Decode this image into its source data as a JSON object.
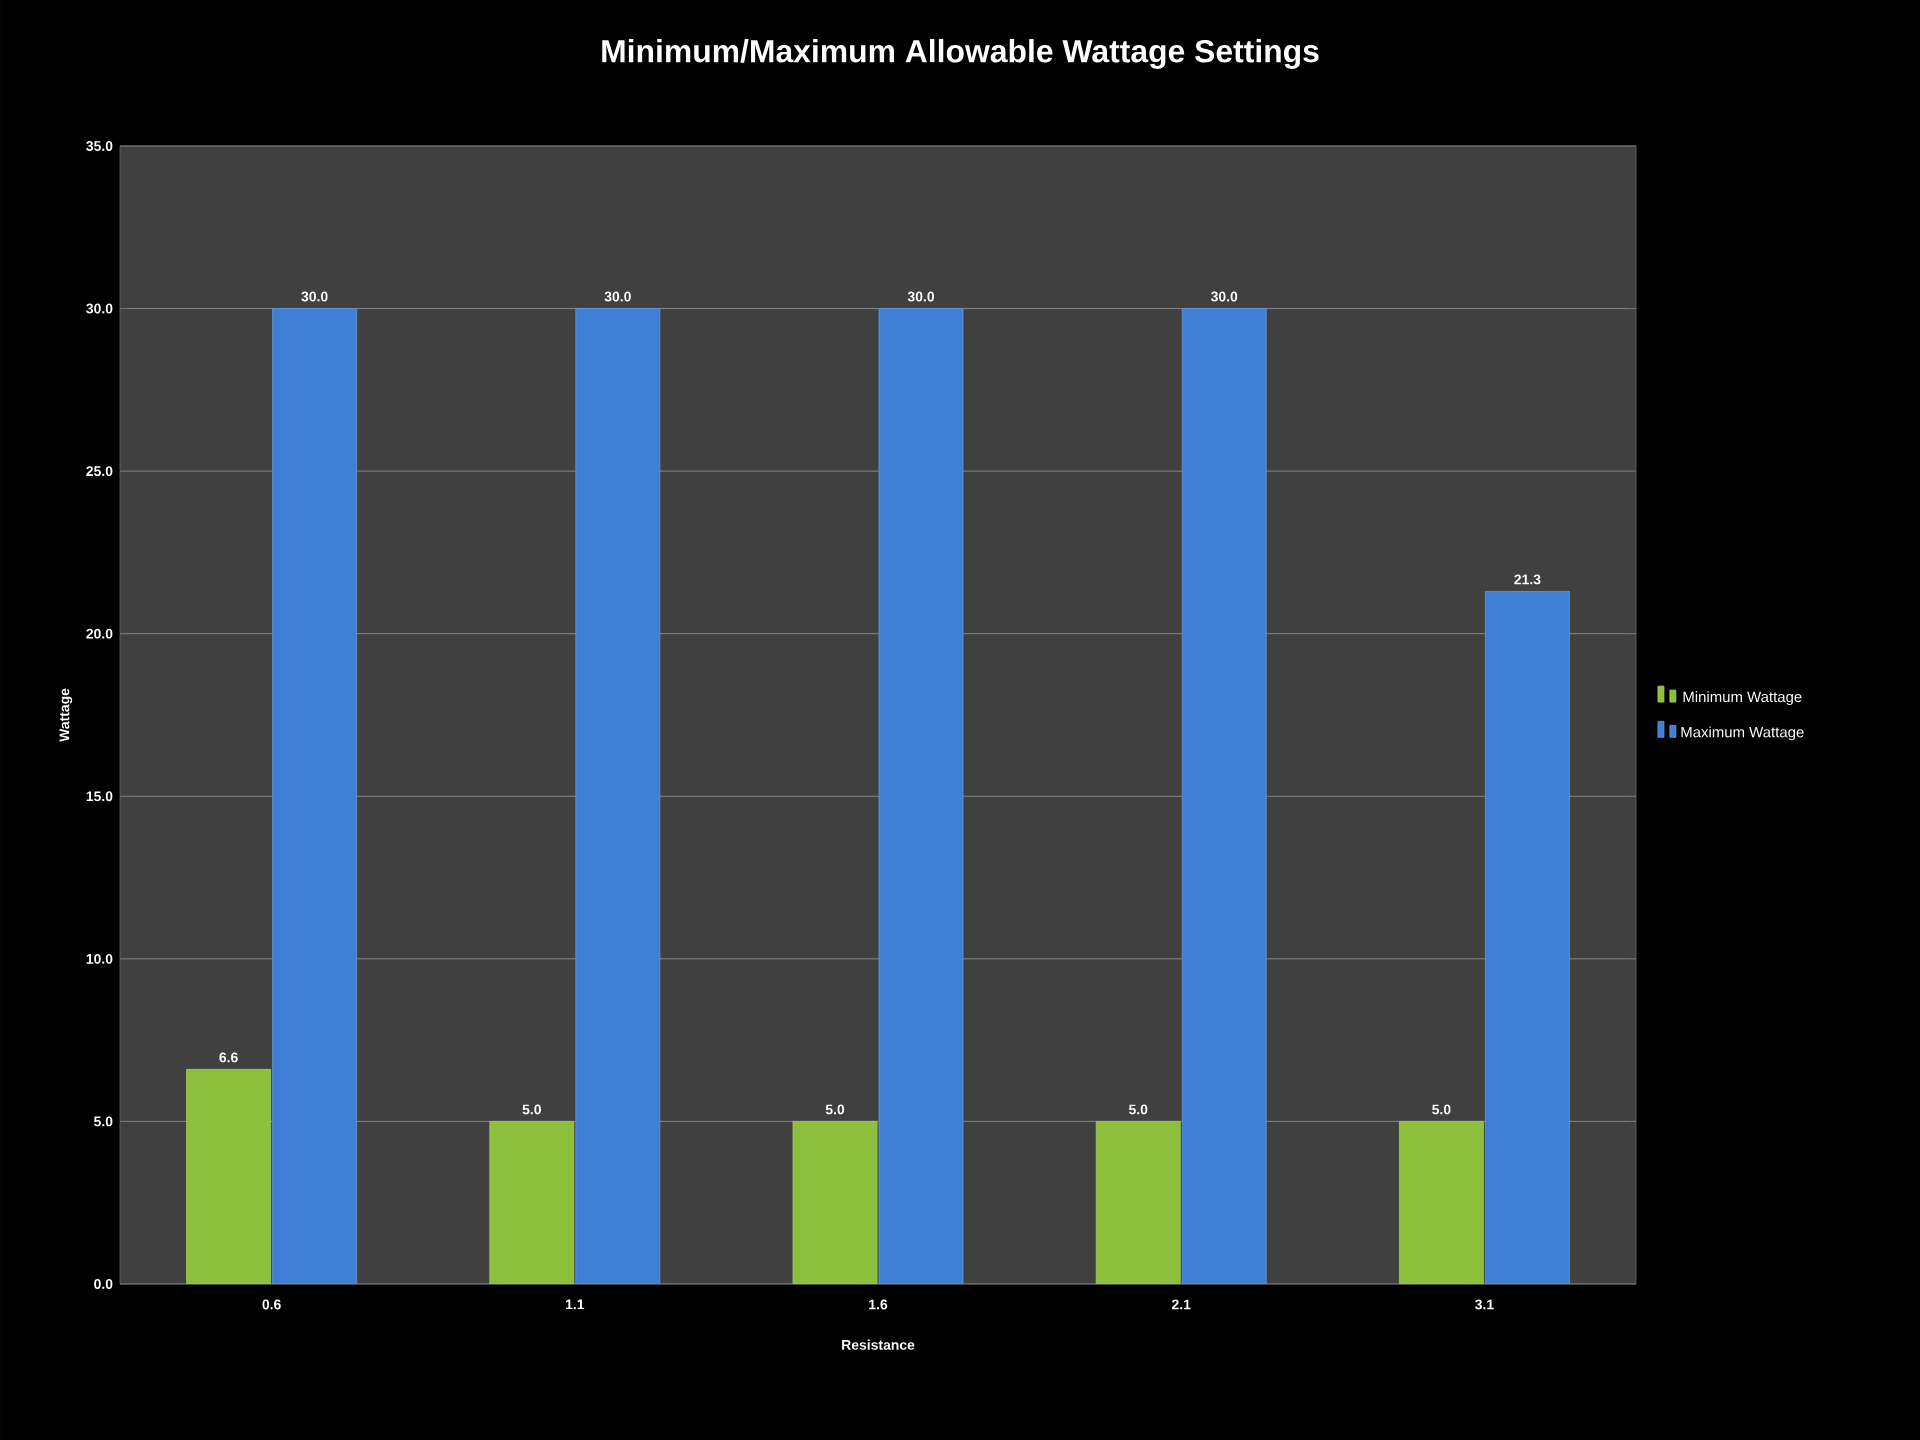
{
  "chart_data": {
    "type": "bar",
    "title": "Minimum/Maximum Allowable Wattage Settings",
    "xlabel": "Resistance",
    "ylabel": "Wattage",
    "categories": [
      "0.6",
      "1.1",
      "1.6",
      "2.1",
      "3.1"
    ],
    "series": [
      {
        "name": "Minimum Wattage",
        "color": "#8cbf3c",
        "values": [
          6.6,
          5.0,
          5.0,
          5.0,
          5.0
        ],
        "value_labels": [
          "6.6",
          "5.0",
          "5.0",
          "5.0",
          "5.0"
        ]
      },
      {
        "name": "Maximum Wattage",
        "color": "#3f80d6",
        "values": [
          30.0,
          30.0,
          30.0,
          30.0,
          21.3
        ],
        "value_labels": [
          "30.0",
          "30.0",
          "30.0",
          "30.0",
          "21.3"
        ]
      }
    ],
    "ylim": [
      0,
      35
    ],
    "yticks": [
      {
        "value": 0,
        "label": "0.0"
      },
      {
        "value": 5,
        "label": "5.0"
      },
      {
        "value": 10,
        "label": "10.0"
      },
      {
        "value": 15,
        "label": "15.0"
      },
      {
        "value": 20,
        "label": "20.0"
      },
      {
        "value": 25,
        "label": "25.0"
      },
      {
        "value": 30,
        "label": "30.0"
      },
      {
        "value": 35,
        "label": "35.0"
      }
    ],
    "grid": "y",
    "legend": "right"
  }
}
